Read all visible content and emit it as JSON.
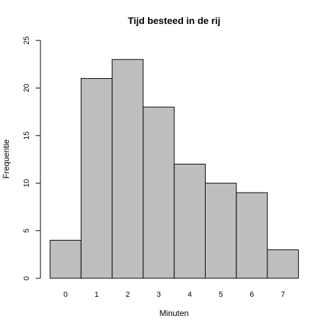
{
  "chart_data": {
    "type": "bar",
    "title": "Tijd besteed in de rij",
    "xlabel": "Minuten",
    "ylabel": "Frequentie",
    "categories": [
      "0",
      "1",
      "2",
      "3",
      "4",
      "5",
      "6",
      "7"
    ],
    "values": [
      4,
      21,
      23,
      18,
      12,
      10,
      9,
      3
    ],
    "ylim": [
      0,
      25
    ],
    "yticks": [
      "0",
      "5",
      "10",
      "15",
      "20",
      "25"
    ],
    "bar_color": "#bebebe",
    "grid": false
  }
}
